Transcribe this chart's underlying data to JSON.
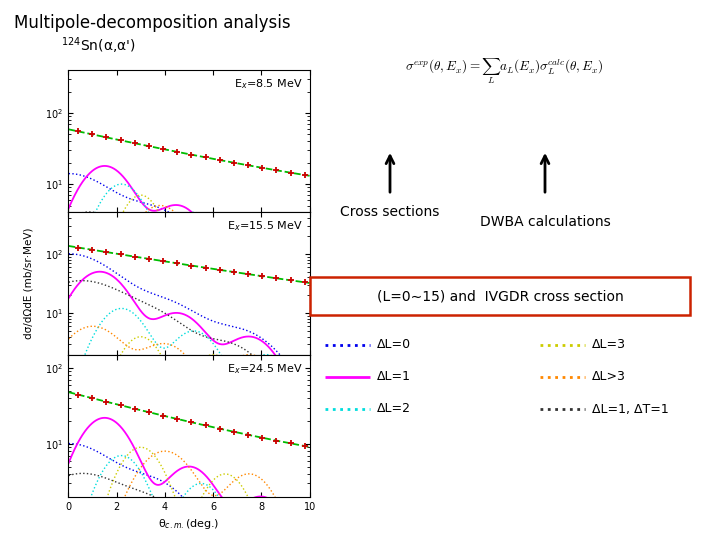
{
  "title": "Multipole-decomposition analysis",
  "subtitle": "     $^{124}$Sn(α,α')",
  "ylabel": "dσ/dΩdE (mb/sr·MeV)",
  "xlabel": "θ$_{c.m.}$(deg.)",
  "panel_labels": [
    "E$_x$=8.5 MeV",
    "E$_x$=15.5 MeV",
    "E$_x$=24.5 MeV"
  ],
  "xmin": 0,
  "xmax": 10,
  "colors": {
    "L0": "#0000ee",
    "L1": "#ff00ff",
    "L2": "#00dddd",
    "L3": "#cccc00",
    "Lgt3": "#ff8800",
    "L1T1": "#333333",
    "total": "#00bb00",
    "data": "#cc0000"
  },
  "box_text": "(L=0∼15) and  IVGDR cross section",
  "annotation_left": "Cross sections",
  "annotation_right": "DWBA calculations",
  "legend_col1": [
    {
      "color": "#0000ee",
      "style": "dotted",
      "label": "ΔL=0"
    },
    {
      "color": "#ff00ff",
      "style": "solid",
      "label": "ΔL=1"
    },
    {
      "color": "#00dddd",
      "style": "dotted",
      "label": "ΔL=2"
    }
  ],
  "legend_col2": [
    {
      "color": "#cccc00",
      "style": "dotted",
      "label": "ΔL=3"
    },
    {
      "color": "#ff8800",
      "style": "dotted",
      "label": "ΔL>3"
    },
    {
      "color": "#333333",
      "style": "dotted",
      "label": "ΔL=1, ΔT=1"
    }
  ]
}
